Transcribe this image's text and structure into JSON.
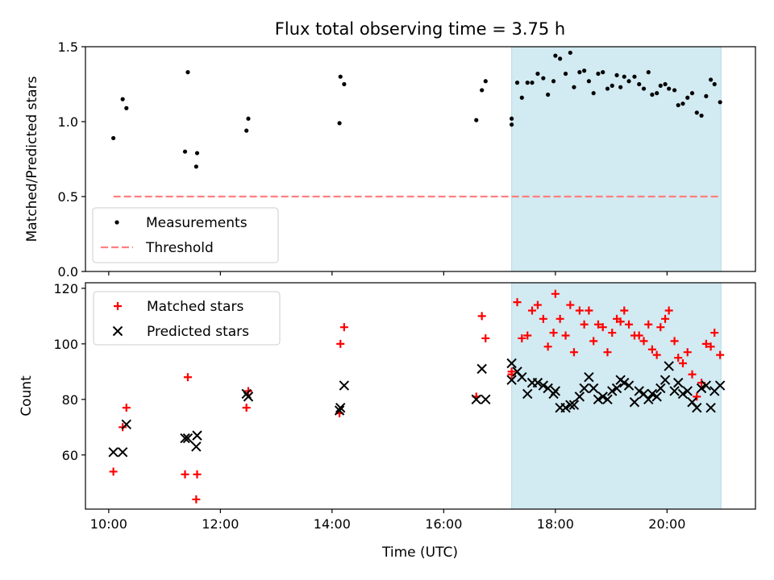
{
  "chart_data": {
    "type": "scatter",
    "title": "Flux total observing time = 3.75 h",
    "xlabel": "Time (UTC)",
    "xlim": [
      "09:35",
      "21:35"
    ],
    "xticks": [
      "10:00",
      "12:00",
      "14:00",
      "16:00",
      "18:00",
      "20:00"
    ],
    "shaded_span": {
      "start": "17:13",
      "end": "20:58",
      "color": "#add8e6"
    },
    "top_panel": {
      "ylabel": "Matched/Predicted stars",
      "ylim": [
        0,
        1.5
      ],
      "yticks": [
        "0.0",
        "0.5",
        "1.0",
        "1.5"
      ],
      "legend_position": "lower-left",
      "series": [
        {
          "name": "Measurements",
          "marker": "dot",
          "color": "#000000",
          "points": [
            [
              "10:05",
              0.89
            ],
            [
              "10:15",
              1.15
            ],
            [
              "10:19",
              1.09
            ],
            [
              "11:22",
              0.8
            ],
            [
              "11:25",
              1.33
            ],
            [
              "11:34",
              0.7
            ],
            [
              "11:35",
              0.79
            ],
            [
              "12:28",
              0.94
            ],
            [
              "12:30",
              1.02
            ],
            [
              "14:08",
              0.99
            ],
            [
              "14:09",
              1.3
            ],
            [
              "14:13",
              1.25
            ],
            [
              "16:35",
              1.01
            ],
            [
              "16:41",
              1.21
            ],
            [
              "16:45",
              1.27
            ],
            [
              "17:13",
              1.02
            ],
            [
              "17:13",
              0.98
            ],
            [
              "17:19",
              1.26
            ],
            [
              "17:24",
              1.16
            ],
            [
              "17:30",
              1.26
            ],
            [
              "17:35",
              1.26
            ],
            [
              "17:41",
              1.32
            ],
            [
              "17:47",
              1.29
            ],
            [
              "17:52",
              1.18
            ],
            [
              "17:58",
              1.27
            ],
            [
              "18:00",
              1.44
            ],
            [
              "18:05",
              1.42
            ],
            [
              "18:11",
              1.32
            ],
            [
              "18:16",
              1.46
            ],
            [
              "18:20",
              1.23
            ],
            [
              "18:26",
              1.33
            ],
            [
              "18:31",
              1.34
            ],
            [
              "18:36",
              1.27
            ],
            [
              "18:41",
              1.19
            ],
            [
              "18:46",
              1.32
            ],
            [
              "18:51",
              1.33
            ],
            [
              "18:56",
              1.22
            ],
            [
              "19:01",
              1.24
            ],
            [
              "19:06",
              1.31
            ],
            [
              "19:10",
              1.23
            ],
            [
              "19:14",
              1.3
            ],
            [
              "19:19",
              1.27
            ],
            [
              "19:25",
              1.3
            ],
            [
              "19:30",
              1.25
            ],
            [
              "19:35",
              1.22
            ],
            [
              "19:40",
              1.33
            ],
            [
              "19:44",
              1.18
            ],
            [
              "19:49",
              1.19
            ],
            [
              "19:53",
              1.24
            ],
            [
              "19:58",
              1.25
            ],
            [
              "20:02",
              1.22
            ],
            [
              "20:08",
              1.21
            ],
            [
              "20:12",
              1.11
            ],
            [
              "20:17",
              1.12
            ],
            [
              "20:22",
              1.16
            ],
            [
              "20:27",
              1.19
            ],
            [
              "20:32",
              1.06
            ],
            [
              "20:37",
              1.04
            ],
            [
              "20:42",
              1.17
            ],
            [
              "20:47",
              1.28
            ],
            [
              "20:51",
              1.25
            ],
            [
              "20:57",
              1.13
            ]
          ]
        },
        {
          "name": "Threshold",
          "style": "dashed-line",
          "color": "#ff7f7f",
          "points": [
            [
              "10:05",
              0.5
            ],
            [
              "20:58",
              0.5
            ]
          ]
        }
      ]
    },
    "bottom_panel": {
      "ylabel": "Count",
      "ylim": [
        40.5,
        122
      ],
      "yticks": [
        "60",
        "80",
        "100",
        "120"
      ],
      "legend_position": "upper-left",
      "series": [
        {
          "name": "Matched stars",
          "marker": "plus",
          "color": "#ff0000",
          "points": [
            [
              "10:05",
              54
            ],
            [
              "10:15",
              70
            ],
            [
              "10:19",
              77
            ],
            [
              "11:22",
              53
            ],
            [
              "11:25",
              88
            ],
            [
              "11:34",
              44
            ],
            [
              "11:35",
              53
            ],
            [
              "12:28",
              77
            ],
            [
              "12:30",
              83
            ],
            [
              "14:08",
              75
            ],
            [
              "14:09",
              100
            ],
            [
              "14:13",
              106
            ],
            [
              "16:35",
              81
            ],
            [
              "16:41",
              110
            ],
            [
              "16:45",
              102
            ],
            [
              "17:13",
              90
            ],
            [
              "17:13",
              89
            ],
            [
              "17:19",
              115
            ],
            [
              "17:24",
              102
            ],
            [
              "17:30",
              103
            ],
            [
              "17:35",
              112
            ],
            [
              "17:41",
              114
            ],
            [
              "17:47",
              109
            ],
            [
              "17:52",
              99
            ],
            [
              "17:58",
              104
            ],
            [
              "18:00",
              118
            ],
            [
              "18:05",
              109
            ],
            [
              "18:11",
              103
            ],
            [
              "18:16",
              114
            ],
            [
              "18:20",
              97
            ],
            [
              "18:26",
              112
            ],
            [
              "18:31",
              107
            ],
            [
              "18:36",
              112
            ],
            [
              "18:41",
              101
            ],
            [
              "18:46",
              107
            ],
            [
              "18:51",
              106
            ],
            [
              "18:56",
              97
            ],
            [
              "19:01",
              104
            ],
            [
              "19:06",
              109
            ],
            [
              "19:10",
              108
            ],
            [
              "19:14",
              112
            ],
            [
              "19:19",
              107
            ],
            [
              "19:25",
              103
            ],
            [
              "19:30",
              103
            ],
            [
              "19:35",
              101
            ],
            [
              "19:40",
              107
            ],
            [
              "19:44",
              98
            ],
            [
              "19:49",
              96
            ],
            [
              "19:53",
              106
            ],
            [
              "19:58",
              109
            ],
            [
              "20:02",
              112
            ],
            [
              "20:08",
              101
            ],
            [
              "20:12",
              95
            ],
            [
              "20:17",
              93
            ],
            [
              "20:22",
              97
            ],
            [
              "20:27",
              89
            ],
            [
              "20:32",
              81
            ],
            [
              "20:37",
              86
            ],
            [
              "20:42",
              100
            ],
            [
              "20:47",
              99
            ],
            [
              "20:51",
              104
            ],
            [
              "20:57",
              96
            ]
          ]
        },
        {
          "name": "Predicted stars",
          "marker": "x",
          "color": "#000000",
          "points": [
            [
              "10:05",
              61
            ],
            [
              "10:15",
              61
            ],
            [
              "10:19",
              71
            ],
            [
              "11:22",
              66
            ],
            [
              "11:25",
              66
            ],
            [
              "11:34",
              63
            ],
            [
              "11:35",
              67
            ],
            [
              "12:28",
              82
            ],
            [
              "12:30",
              81
            ],
            [
              "14:08",
              76
            ],
            [
              "14:09",
              77
            ],
            [
              "14:13",
              85
            ],
            [
              "16:35",
              80
            ],
            [
              "16:41",
              91
            ],
            [
              "16:45",
              80
            ],
            [
              "17:13",
              87
            ],
            [
              "17:13",
              93
            ],
            [
              "17:19",
              90
            ],
            [
              "17:24",
              88
            ],
            [
              "17:30",
              82
            ],
            [
              "17:35",
              86
            ],
            [
              "17:41",
              86
            ],
            [
              "17:47",
              85
            ],
            [
              "17:52",
              84
            ],
            [
              "17:58",
              82
            ],
            [
              "18:00",
              83
            ],
            [
              "18:05",
              77
            ],
            [
              "18:11",
              77
            ],
            [
              "18:16",
              78
            ],
            [
              "18:20",
              78
            ],
            [
              "18:26",
              81
            ],
            [
              "18:31",
              84
            ],
            [
              "18:36",
              88
            ],
            [
              "18:41",
              84
            ],
            [
              "18:46",
              80
            ],
            [
              "18:51",
              81
            ],
            [
              "18:56",
              80
            ],
            [
              "19:01",
              83
            ],
            [
              "19:06",
              84
            ],
            [
              "19:10",
              87
            ],
            [
              "19:14",
              86
            ],
            [
              "19:19",
              85
            ],
            [
              "19:25",
              79
            ],
            [
              "19:30",
              83
            ],
            [
              "19:35",
              82
            ],
            [
              "19:40",
              80
            ],
            [
              "19:44",
              82
            ],
            [
              "19:49",
              81
            ],
            [
              "19:53",
              84
            ],
            [
              "19:58",
              87
            ],
            [
              "20:02",
              92
            ],
            [
              "20:08",
              83
            ],
            [
              "20:12",
              86
            ],
            [
              "20:17",
              82
            ],
            [
              "20:22",
              83
            ],
            [
              "20:27",
              79
            ],
            [
              "20:32",
              77
            ],
            [
              "20:37",
              84
            ],
            [
              "20:42",
              85
            ],
            [
              "20:47",
              77
            ],
            [
              "20:51",
              83
            ],
            [
              "20:57",
              85
            ]
          ]
        }
      ]
    }
  }
}
